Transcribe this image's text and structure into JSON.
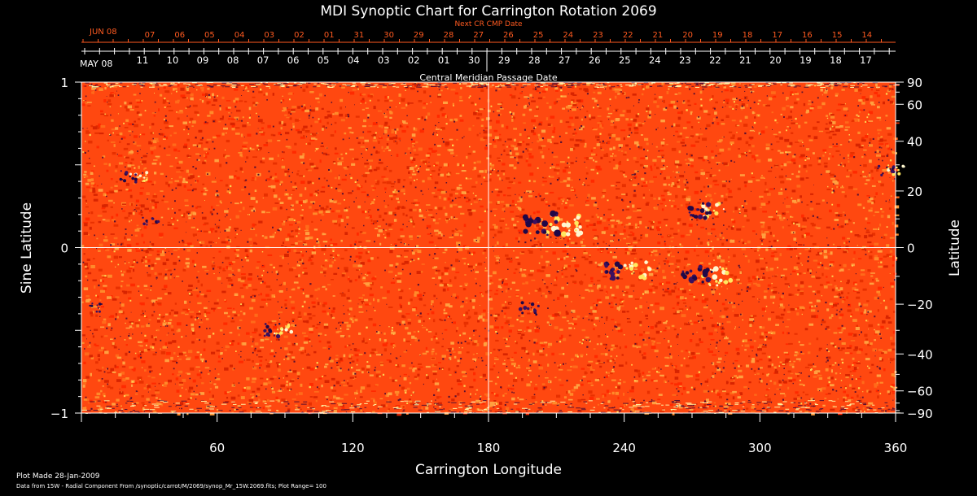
{
  "chart_data": {
    "type": "heatmap",
    "title": "MDI Synoptic Chart for Carrington Rotation 2069",
    "xlabel": "Carrington Longitude",
    "ylabel_left": "Sine Latitude",
    "ylabel_right": "Latitude",
    "xlim": [
      0,
      360
    ],
    "ylim_sine": [
      -1,
      1
    ],
    "x_ticks": [
      60,
      120,
      180,
      240,
      300,
      360
    ],
    "y_left_ticks": [
      -1,
      0,
      1
    ],
    "y_right_ticks": [
      -90,
      -60,
      -40,
      -20,
      0,
      20,
      40,
      60,
      90
    ],
    "crosshair": {
      "longitude": 180,
      "sine_latitude": 0
    },
    "top_axis_inner": {
      "label": "Central Meridian Passage Date",
      "month_label": "MAY 08",
      "start_day": 12,
      "ticks": [
        "11",
        "10",
        "09",
        "08",
        "07",
        "06",
        "05",
        "04",
        "03",
        "02",
        "01",
        "30",
        "29",
        "28",
        "27",
        "26",
        "25",
        "24",
        "23",
        "22",
        "21",
        "20",
        "19",
        "18",
        "17"
      ]
    },
    "top_axis_outer": {
      "label": "Next CR CMP Date",
      "month_label": "JUN 08",
      "ticks": [
        "07",
        "06",
        "05",
        "04",
        "03",
        "02",
        "01",
        "31",
        "30",
        "29",
        "28",
        "27",
        "26",
        "25",
        "24",
        "23",
        "22",
        "21",
        "20",
        "19",
        "18",
        "17",
        "16",
        "15",
        "14"
      ]
    },
    "active_regions": [
      {
        "longitude": 207,
        "sine_latitude": 0.14,
        "polarity": "mixed",
        "strength": 0.95
      },
      {
        "longitude": 275,
        "sine_latitude": 0.22,
        "polarity": "mixed",
        "strength": 0.6
      },
      {
        "longitude": 240,
        "sine_latitude": -0.14,
        "polarity": "mixed",
        "strength": 0.7
      },
      {
        "longitude": 275,
        "sine_latitude": -0.17,
        "polarity": "mixed",
        "strength": 0.8
      },
      {
        "longitude": 200,
        "sine_latitude": -0.37,
        "polarity": "negative",
        "strength": 0.45
      },
      {
        "longitude": 85,
        "sine_latitude": -0.5,
        "polarity": "mixed",
        "strength": 0.45
      },
      {
        "longitude": 22,
        "sine_latitude": 0.43,
        "polarity": "mixed",
        "strength": 0.35
      },
      {
        "longitude": 32,
        "sine_latitude": 0.16,
        "polarity": "negative",
        "strength": 0.3
      },
      {
        "longitude": 357,
        "sine_latitude": 0.47,
        "polarity": "mixed",
        "strength": 0.35
      },
      {
        "longitude": 8,
        "sine_latitude": -0.36,
        "polarity": "negative",
        "strength": 0.25
      }
    ]
  },
  "footer": {
    "plot_made": "Plot Made 28-Jan-2009",
    "source": "Data from 15W - Radial Component From /synoptic/carrot/M/2069/synop_Mr_15W.2069.fits; Plot Range=  100"
  },
  "colors": {
    "background": "#000000",
    "axes": "#ffffff",
    "top_axis_outer": "#ff5a20",
    "field_base": "#ff4810",
    "field_dark": "#200848",
    "field_bright": "#ffe860"
  }
}
